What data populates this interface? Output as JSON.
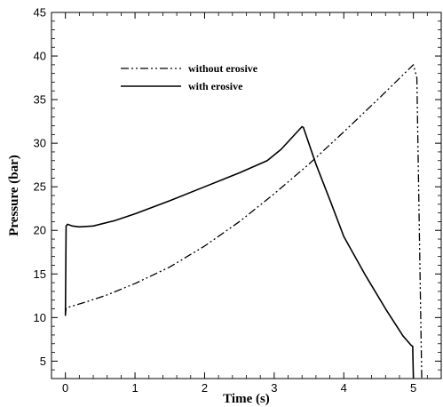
{
  "chart_data": {
    "type": "line",
    "title": "",
    "xlabel": "Time (s)",
    "ylabel": "Pressure (bar)",
    "xlim": [
      -0.2,
      5.4
    ],
    "ylim": [
      3,
      45
    ],
    "x_ticks": [
      0,
      1,
      2,
      3,
      4,
      5
    ],
    "y_ticks": [
      5,
      10,
      15,
      20,
      25,
      30,
      35,
      40,
      45
    ],
    "x_minor_step": 0.2,
    "y_minor_step": 1,
    "grid": false,
    "legend_position": "top-left",
    "series": [
      {
        "name": "without erosive",
        "line_style": "dash-dot-dot",
        "color": "#000000",
        "x": [
          0,
          0.01,
          0.3,
          0.6,
          1.0,
          1.5,
          2.0,
          2.5,
          3.0,
          3.5,
          4.0,
          4.5,
          5.0,
          5.05,
          5.12
        ],
        "y": [
          10.2,
          11.1,
          11.8,
          12.6,
          13.9,
          15.8,
          18.2,
          21.0,
          24.2,
          27.6,
          31.3,
          35.1,
          39.0,
          37.5,
          3.0
        ]
      },
      {
        "name": "with erosive",
        "line_style": "solid",
        "color": "#000000",
        "x": [
          0,
          0.01,
          0.03,
          0.1,
          0.2,
          0.4,
          0.7,
          1.0,
          1.5,
          2.0,
          2.5,
          2.9,
          3.1,
          3.4,
          3.42,
          3.6,
          3.8,
          4.0,
          4.3,
          4.6,
          4.85,
          4.97,
          4.99,
          5.0
        ],
        "y": [
          10.2,
          20.5,
          20.7,
          20.5,
          20.4,
          20.5,
          21.1,
          21.9,
          23.4,
          25.0,
          26.6,
          28.0,
          29.3,
          31.9,
          31.8,
          27.6,
          23.5,
          19.3,
          15.0,
          11.0,
          7.9,
          6.8,
          6.7,
          3.0
        ]
      }
    ]
  }
}
